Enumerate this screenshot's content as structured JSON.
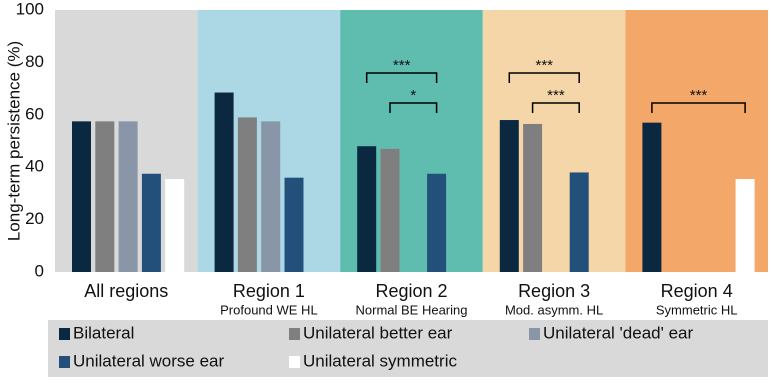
{
  "chart_data": {
    "type": "bar",
    "y_label": "Long-term persistence (%)",
    "categories": [
      "All regions",
      "Region 1",
      "Region 2",
      "Region 3",
      "Region 4"
    ],
    "category_subtitles": [
      null,
      "Profound WE HL",
      "Normal BE Hearing",
      "Mod. asymm. HL",
      "Symmetric HL"
    ],
    "category_colors": [
      "#d9d9d9",
      "#acd8e6",
      "#5fbdb0",
      "#f5d6a9",
      "#f3a86a"
    ],
    "series": [
      {
        "name": "Bilateral",
        "color": "#0b2841",
        "values": [
          57.5,
          68.5,
          48,
          58,
          57
        ]
      },
      {
        "name": "Unilateral better ear",
        "color": "#7f7f7f",
        "values": [
          57.5,
          59,
          47,
          56.5,
          null
        ]
      },
      {
        "name": "Unilateral 'dead' ear",
        "color": "#8896a8",
        "values": [
          57.5,
          57.5,
          null,
          null,
          null
        ]
      },
      {
        "name": "Unilateral worse ear",
        "color": "#23507a",
        "values": [
          37.5,
          36,
          37.5,
          38,
          null
        ]
      },
      {
        "name": "Unilateral symmetric",
        "color": "#ffffff",
        "values": [
          35.5,
          null,
          null,
          null,
          35.5
        ]
      }
    ],
    "annotations": [
      {
        "category": 2,
        "from": 0,
        "to": 3,
        "label": "***"
      },
      {
        "category": 2,
        "from": 1,
        "to": 3,
        "label": "*"
      },
      {
        "category": 3,
        "from": 0,
        "to": 3,
        "label": "***"
      },
      {
        "category": 3,
        "from": 1,
        "to": 3,
        "label": "***"
      },
      {
        "category": 4,
        "from": 0,
        "to": 4,
        "label": "***"
      }
    ],
    "ylim": [
      0,
      100
    ],
    "yticks": [
      0,
      20,
      40,
      60,
      80,
      100
    ],
    "grid": false
  }
}
